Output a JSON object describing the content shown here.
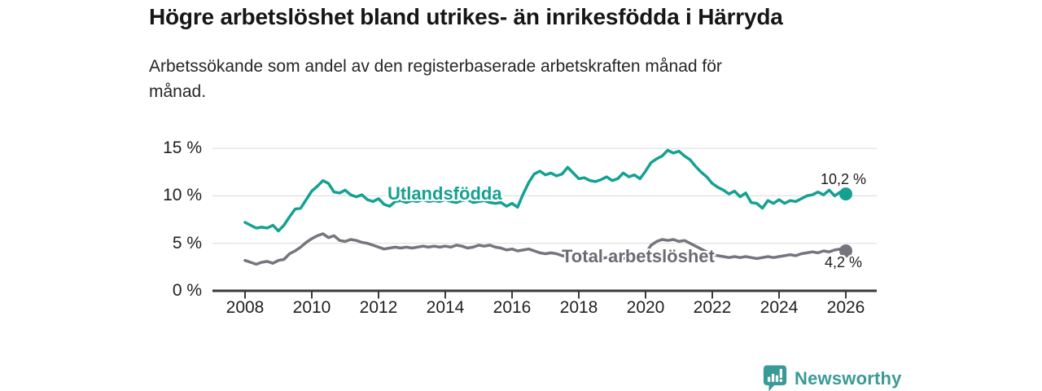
{
  "header": {
    "title": "Högre arbetslöshet bland utrikes- än inrikesfödda i Härryda",
    "subtitle": "Arbetssökande som andel av den registerbaserade arbetskraften månad för månad."
  },
  "chart_data": {
    "type": "line",
    "title": "Högre arbetslöshet bland utrikes- än inrikesfödda i Härryda",
    "subtitle": "Arbetssökande som andel av den registerbaserade arbetskraften månad för månad.",
    "grid": "horizontal-light",
    "legend_position": "inline-labels",
    "x_axis": {
      "unit": "year",
      "ticks": [
        2008,
        2010,
        2012,
        2014,
        2016,
        2018,
        2020,
        2022,
        2024,
        2026
      ]
    },
    "y_axis": {
      "unit": "%",
      "ticks": [
        {
          "value": 0,
          "label": "0 %"
        },
        {
          "value": 5,
          "label": "5 %"
        },
        {
          "value": 10,
          "label": "10 %"
        },
        {
          "value": 15,
          "label": "15 %"
        }
      ]
    },
    "ylim": [
      0,
      16
    ],
    "xlim": [
      2007,
      2027
    ],
    "series": [
      {
        "name": "Utlandsfödda",
        "color": "#14a192",
        "end_label": "10,2 %",
        "last_value": 10.2,
        "x_start": 2008,
        "x_step": 0.1666667,
        "values": [
          7.2,
          6.9,
          6.6,
          6.7,
          6.6,
          6.9,
          6.3,
          6.9,
          7.8,
          8.6,
          8.7,
          9.6,
          10.5,
          11.0,
          11.6,
          11.3,
          10.4,
          10.3,
          10.6,
          10.1,
          9.9,
          10.1,
          9.6,
          9.4,
          9.7,
          9.1,
          8.9,
          9.4,
          9.5,
          9.3,
          9.5,
          9.4,
          9.6,
          9.4,
          9.5,
          9.4,
          9.6,
          9.4,
          9.3,
          9.5,
          9.6,
          9.3,
          9.4,
          9.5,
          9.3,
          9.2,
          9.3,
          8.9,
          9.2,
          8.8,
          10.2,
          11.4,
          12.3,
          12.6,
          12.2,
          12.4,
          12.1,
          12.3,
          13.0,
          12.4,
          11.8,
          11.9,
          11.6,
          11.5,
          11.7,
          12.0,
          11.6,
          11.8,
          12.4,
          12.0,
          12.2,
          11.8,
          12.6,
          13.5,
          13.9,
          14.2,
          14.8,
          14.5,
          14.7,
          14.2,
          13.8,
          13.1,
          12.5,
          12.0,
          11.3,
          10.9,
          10.6,
          10.2,
          10.5,
          9.9,
          10.3,
          9.3,
          9.2,
          8.7,
          9.5,
          9.2,
          9.6,
          9.2,
          9.5,
          9.4,
          9.7,
          10.0,
          10.1,
          10.4,
          10.1,
          10.6,
          10.0,
          10.4,
          10.2
        ]
      },
      {
        "name": "Total arbetslöshet",
        "color": "#75757d",
        "end_label": "4,2 %",
        "last_value": 4.2,
        "x_start": 2008,
        "x_step": 0.1666667,
        "values": [
          3.2,
          3.0,
          2.8,
          3.0,
          3.1,
          2.9,
          3.2,
          3.3,
          3.9,
          4.2,
          4.6,
          5.1,
          5.5,
          5.8,
          6.0,
          5.6,
          5.8,
          5.3,
          5.2,
          5.4,
          5.3,
          5.1,
          5.0,
          4.8,
          4.6,
          4.4,
          4.5,
          4.6,
          4.5,
          4.6,
          4.5,
          4.6,
          4.7,
          4.6,
          4.7,
          4.6,
          4.7,
          4.6,
          4.8,
          4.7,
          4.5,
          4.6,
          4.8,
          4.7,
          4.8,
          4.6,
          4.5,
          4.3,
          4.4,
          4.2,
          4.3,
          4.4,
          4.2,
          4.0,
          3.9,
          4.0,
          3.9,
          3.7,
          3.6,
          3.5,
          3.4,
          3.5,
          3.4,
          3.3,
          3.4,
          3.5,
          3.4,
          3.5,
          3.4,
          3.5,
          3.4,
          3.6,
          3.9,
          4.8,
          5.2,
          5.4,
          5.3,
          5.4,
          5.2,
          5.3,
          5.0,
          4.7,
          4.4,
          4.1,
          3.8,
          3.7,
          3.6,
          3.5,
          3.6,
          3.5,
          3.6,
          3.5,
          3.4,
          3.5,
          3.6,
          3.5,
          3.6,
          3.7,
          3.8,
          3.7,
          3.9,
          4.0,
          4.1,
          4.0,
          4.2,
          4.1,
          4.3,
          4.4,
          4.2
        ]
      }
    ]
  },
  "footer": {
    "brand": "Newsworthy",
    "logo_color": "#3a9a97",
    "logo_icon": "bar-chart-speech-bubble-icon"
  }
}
